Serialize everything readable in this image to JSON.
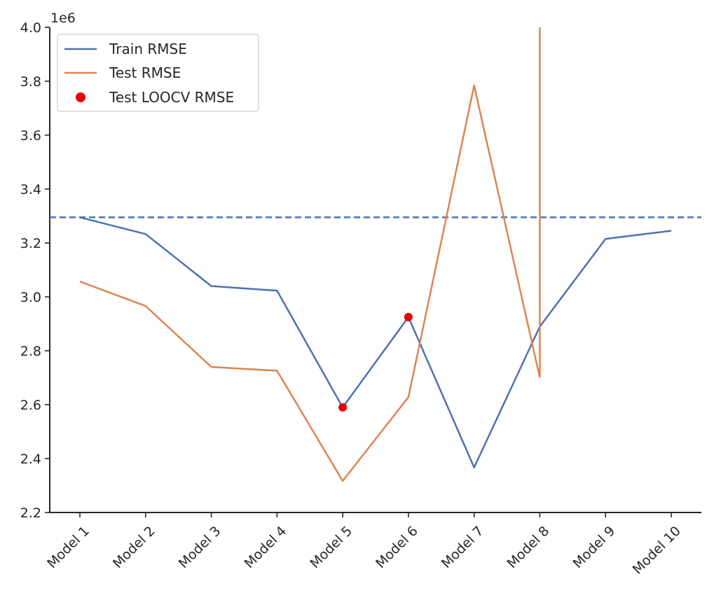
{
  "chart_data": {
    "type": "line",
    "categories": [
      "Model 1",
      "Model 2",
      "Model 3",
      "Model 4",
      "Model 5",
      "Model 6",
      "Model 7",
      "Model 8",
      "Model 9",
      "Model 10"
    ],
    "ylim": [
      2.2,
      4.0
    ],
    "y_ticks": [
      "2.2",
      "2.4",
      "2.6",
      "2.8",
      "3.0",
      "3.2",
      "3.4",
      "3.6",
      "3.8",
      "4.0"
    ],
    "y_scale_label": "1e6",
    "grid": false,
    "legend_position": "top-left",
    "series": [
      {
        "name": "Train RMSE",
        "kind": "line",
        "color": "#4c72b0",
        "values": [
          3.295,
          3.233,
          3.04,
          3.023,
          2.59,
          2.925,
          2.367,
          2.89,
          3.215,
          3.245
        ]
      },
      {
        "name": "Test RMSE",
        "kind": "line",
        "color": "#dd8452",
        "values": [
          3.057,
          2.966,
          2.74,
          2.726,
          2.317,
          2.628,
          3.784,
          2.7,
          null,
          null
        ],
        "extra_segment_at_model_8": [
          4.0,
          2.7
        ]
      },
      {
        "name": "Test LOOCV RMSE",
        "kind": "scatter",
        "color": "#e8000b",
        "values": [
          null,
          null,
          null,
          null,
          2.59,
          2.925,
          null,
          null,
          null,
          null
        ]
      }
    ],
    "reference_line": {
      "y": 3.295,
      "style": "dashed",
      "color": "#4c72b0"
    },
    "x_tick_rotation": 45
  }
}
